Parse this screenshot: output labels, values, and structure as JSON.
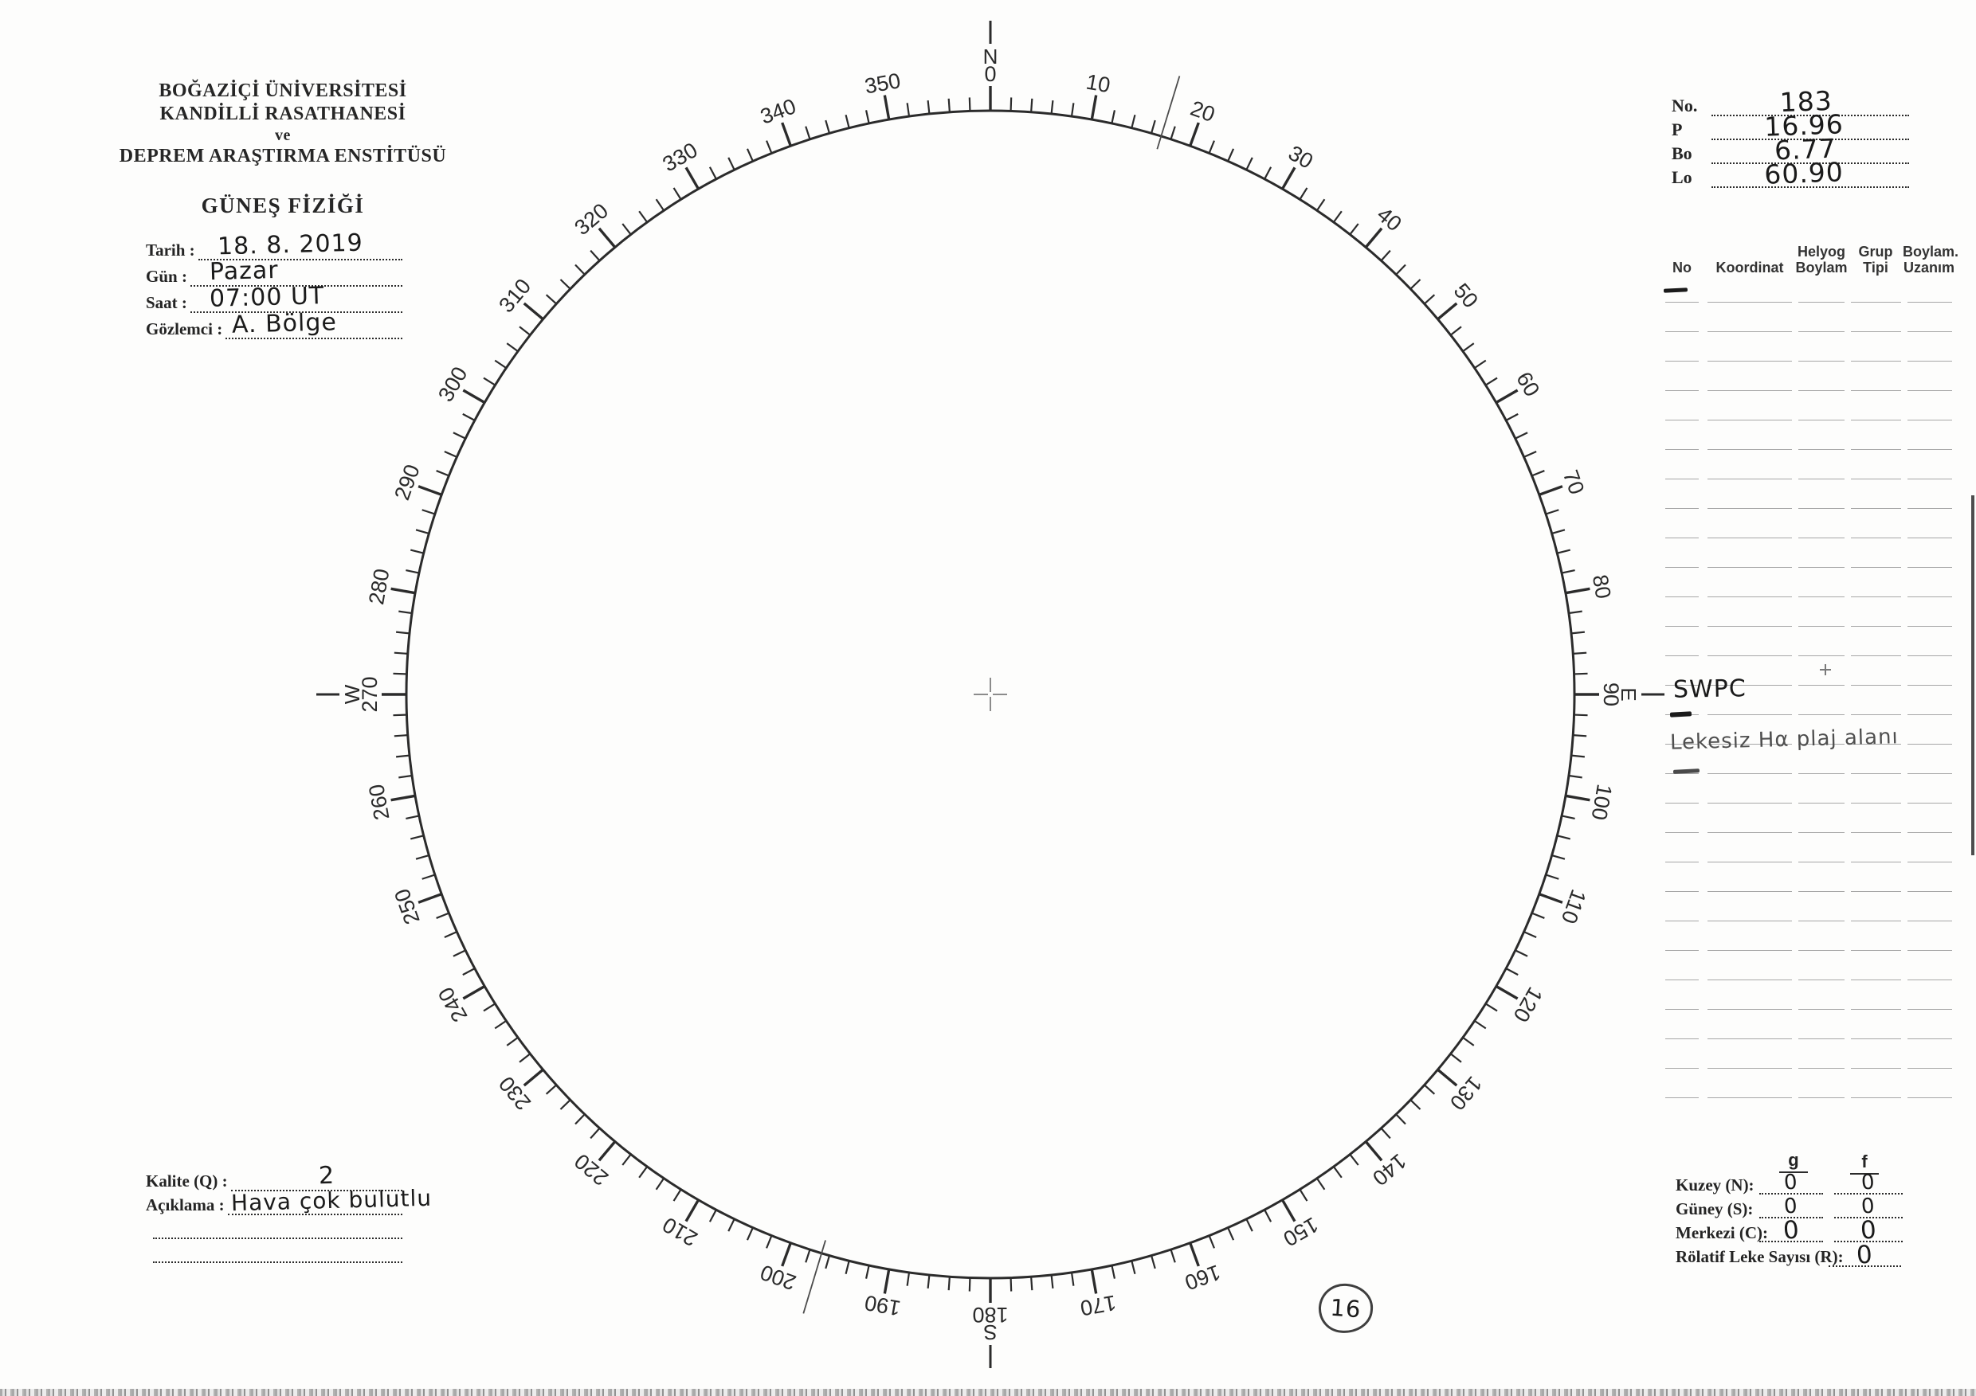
{
  "institution": {
    "lines": [
      "BOĞAZİÇİ ÜNİVERSİTESİ",
      "KANDİLLİ RASATHANESİ",
      "ve",
      "DEPREM ARAŞTIRMA ENSTİTÜSÜ"
    ],
    "form_title": "GÜNEŞ FİZİĞİ"
  },
  "observation": {
    "fields": [
      {
        "label": "Tarih :",
        "value": "18. 8. 2019"
      },
      {
        "label": "Gün :",
        "value": "Pazar"
      },
      {
        "label": "Saat :",
        "value": "07:00 UT"
      },
      {
        "label": "Gözlemci :",
        "value": "A. Bölge"
      }
    ]
  },
  "ephemeris": {
    "fields": [
      {
        "label": "No.",
        "value": "183"
      },
      {
        "label": "P",
        "value": "16.96"
      },
      {
        "label": "Bo",
        "value": "6.77"
      },
      {
        "label": "Lo",
        "value": "60.90"
      }
    ]
  },
  "groups_table": {
    "headers": [
      {
        "line1": "No",
        "line2": ""
      },
      {
        "line1": "Koordinat",
        "line2": ""
      },
      {
        "line1": "Helyog",
        "line2": "Boylam"
      },
      {
        "line1": "Grup",
        "line2": "Tipi"
      },
      {
        "line1": "Boylam.",
        "line2": "Uzanım"
      }
    ],
    "blank_row_count": 28,
    "handwritten_notes": [
      {
        "text": "SWPC"
      },
      {
        "text": "Lekesiz Hα plaj alanı"
      }
    ]
  },
  "dial": {
    "tick_step_deg": 2,
    "major_step_deg": 10,
    "degree_labels": [
      "0",
      "10",
      "20",
      "30",
      "40",
      "50",
      "60",
      "70",
      "80",
      "90",
      "100",
      "110",
      "120",
      "130",
      "140",
      "150",
      "160",
      "170",
      "180",
      "190",
      "200",
      "210",
      "220",
      "230",
      "240",
      "250",
      "260",
      "270",
      "280",
      "290",
      "300",
      "310",
      "320",
      "330",
      "340",
      "350"
    ],
    "cardinals": [
      {
        "angle": 0,
        "label": "N"
      },
      {
        "angle": 90,
        "label": "E"
      },
      {
        "angle": 180,
        "label": "S"
      },
      {
        "angle": 270,
        "label": "W"
      }
    ],
    "axis_marks_deg": [
      17,
      196.8
    ]
  },
  "quality": {
    "label": "Kalite (Q) :",
    "value": "2"
  },
  "remarks": {
    "label": "Açıklama :",
    "value": "Hava çok bulutlu"
  },
  "sunspot_counts": {
    "col_headers": [
      "g",
      "f"
    ],
    "rows": [
      {
        "label": "Kuzey (N):",
        "g": "0",
        "f": "0"
      },
      {
        "label": "Güney (S):",
        "g": "0",
        "f": "0"
      },
      {
        "label": "Merkezi (C):",
        "g": "0",
        "f": "0"
      }
    ],
    "relative_row": {
      "label": "Rölatif Leke Sayısı (R):",
      "value": "0"
    }
  },
  "page_number": "16",
  "ink_colors": {
    "print": "#2b2b2b",
    "hand": "#1a1a1a",
    "pencil": "#4f4f4f",
    "table_line": "#a6a6a6"
  }
}
